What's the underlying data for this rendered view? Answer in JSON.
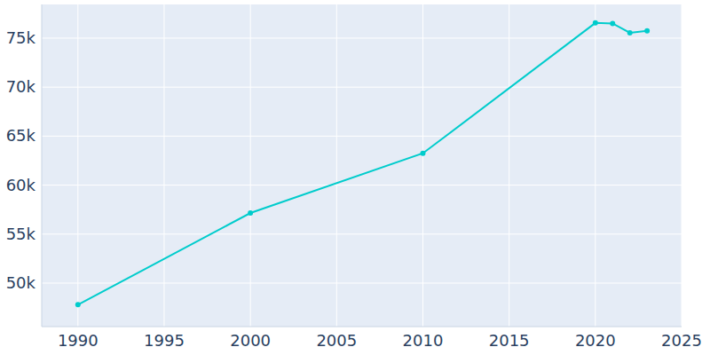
{
  "chart_data": {
    "type": "line",
    "x": [
      1990,
      2000,
      2010,
      2020,
      2021,
      2022,
      2023
    ],
    "values": [
      47800,
      57150,
      63250,
      76550,
      76500,
      75550,
      75750
    ],
    "color": "#00cccc",
    "marker": "circle",
    "xlim": [
      1987.9,
      2025
    ],
    "xticks": [
      1990,
      1995,
      2000,
      2005,
      2010,
      2015,
      2020,
      2025
    ],
    "ylim": [
      45560,
      78440
    ],
    "yticks": [
      {
        "value": 50000,
        "label": "50k"
      },
      {
        "value": 55000,
        "label": "55k"
      },
      {
        "value": 60000,
        "label": "60k"
      },
      {
        "value": 65000,
        "label": "65k"
      },
      {
        "value": 70000,
        "label": "70k"
      },
      {
        "value": 75000,
        "label": "75k"
      }
    ],
    "grid": true
  }
}
